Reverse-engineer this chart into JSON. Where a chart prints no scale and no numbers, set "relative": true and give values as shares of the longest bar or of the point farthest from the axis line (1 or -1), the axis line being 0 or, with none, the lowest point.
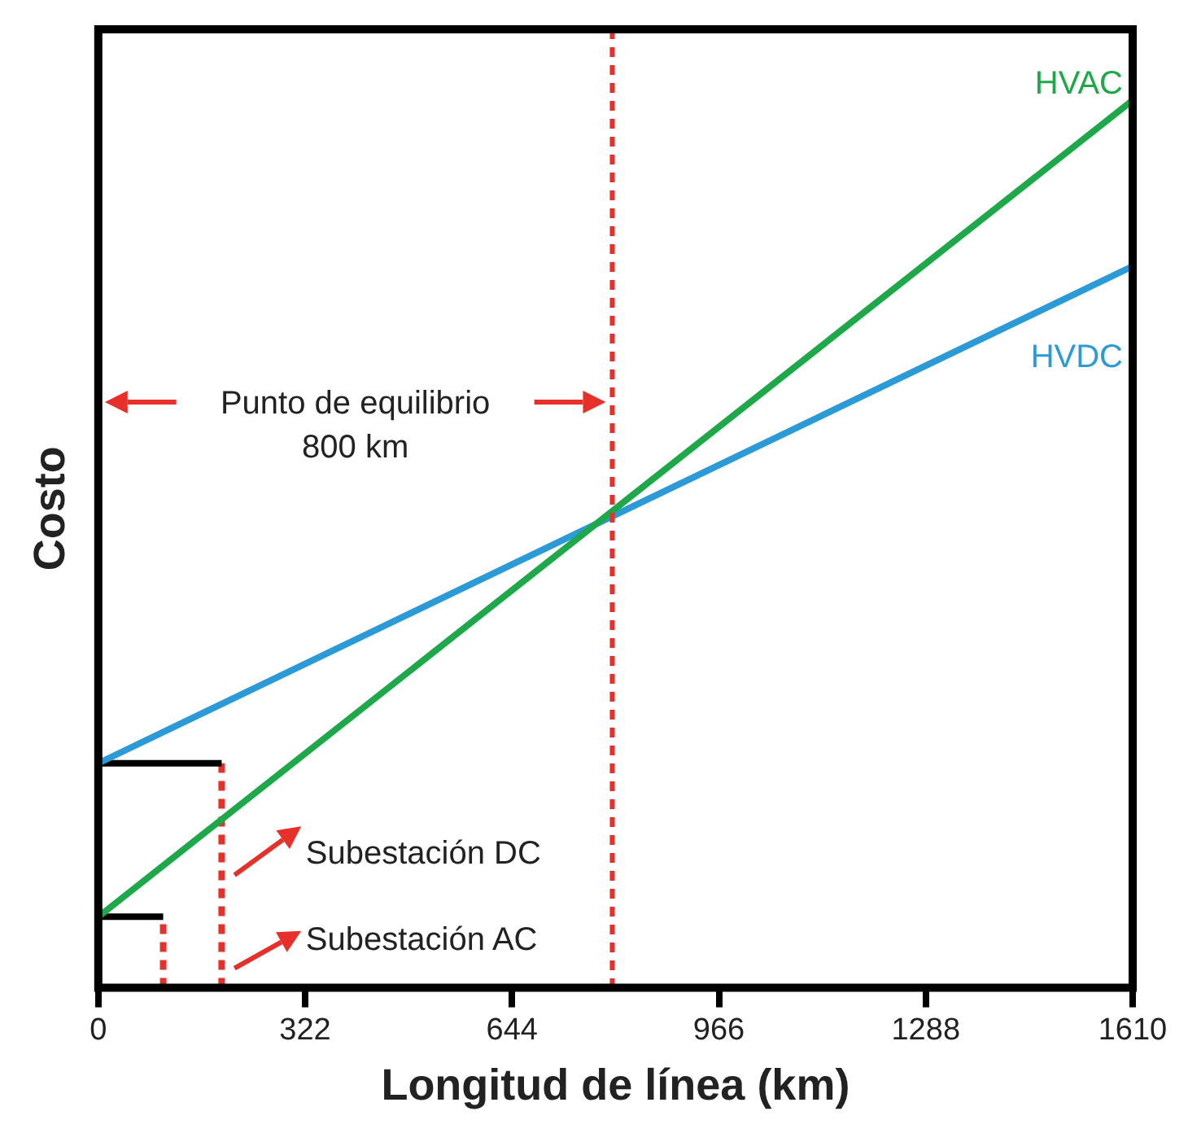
{
  "chart_data": {
    "type": "line",
    "relative": true,
    "xlabel": "Longitud de línea (km)",
    "ylabel": "Costo",
    "xlim": [
      0,
      1610
    ],
    "xticks": [
      0,
      322,
      644,
      966,
      1288,
      1610
    ],
    "grid": false,
    "legend": false,
    "marker": "none",
    "series": [
      {
        "name": "HVAC",
        "color": "#1ea84a",
        "x": [
          0,
          1610
        ],
        "values": [
          0.08,
          1
        ]
      },
      {
        "name": "HVDC",
        "color": "#2b9ad6",
        "x": [
          0,
          1610
        ],
        "values": [
          0.253,
          0.813
        ]
      },
      {
        "color": "#000000",
        "x": [
          0,
          192
        ],
        "values": [
          0.253,
          0.253
        ]
      },
      {
        "color": "#000000",
        "x": [
          0,
          101
        ],
        "values": [
          0.08,
          0.08
        ]
      },
      {
        "color": "#e8302a",
        "x": [
          192,
          192
        ],
        "values": [
          0,
          0.253
        ],
        "line_style": "dashed"
      },
      {
        "color": "#e8302a",
        "x": [
          101,
          101
        ],
        "values": [
          0,
          0.08
        ],
        "line_style": "dashed"
      }
    ],
    "ref_lines": [
      {
        "axis": "x",
        "value": 800,
        "color": "#e8302a",
        "line_style": "dashed"
      }
    ],
    "annotations": [
      "Punto de equilibrio\n800 km",
      "Subestación DC",
      "Subestación AC"
    ]
  }
}
